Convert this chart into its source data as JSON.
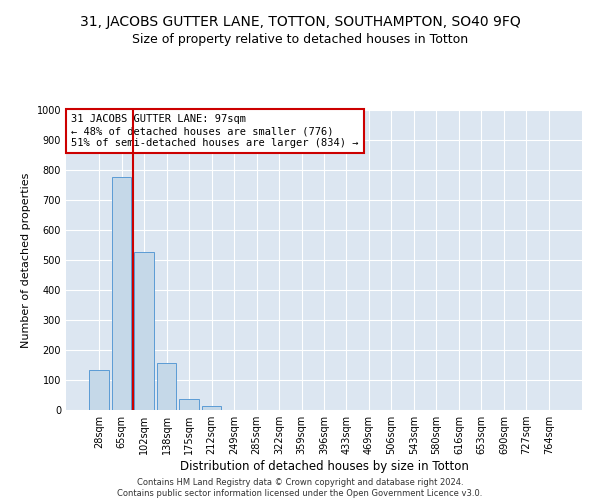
{
  "title": "31, JACOBS GUTTER LANE, TOTTON, SOUTHAMPTON, SO40 9FQ",
  "subtitle": "Size of property relative to detached houses in Totton",
  "xlabel": "Distribution of detached houses by size in Totton",
  "ylabel": "Number of detached properties",
  "bin_labels": [
    "28sqm",
    "65sqm",
    "102sqm",
    "138sqm",
    "175sqm",
    "212sqm",
    "249sqm",
    "285sqm",
    "322sqm",
    "359sqm",
    "396sqm",
    "433sqm",
    "469sqm",
    "506sqm",
    "543sqm",
    "580sqm",
    "616sqm",
    "653sqm",
    "690sqm",
    "727sqm",
    "764sqm"
  ],
  "bar_values": [
    133,
    778,
    527,
    158,
    37,
    12,
    0,
    0,
    0,
    0,
    0,
    0,
    0,
    0,
    0,
    0,
    0,
    0,
    0,
    0,
    0
  ],
  "bar_color": "#c5d8e8",
  "bar_edge_color": "#5b9bd5",
  "vline_color": "#cc0000",
  "annotation_line1": "31 JACOBS GUTTER LANE: 97sqm",
  "annotation_line2": "← 48% of detached houses are smaller (776)",
  "annotation_line3": "51% of semi-detached houses are larger (834) →",
  "annotation_box_color": "#ffffff",
  "annotation_box_edge": "#cc0000",
  "ylim": [
    0,
    1000
  ],
  "yticks": [
    0,
    100,
    200,
    300,
    400,
    500,
    600,
    700,
    800,
    900,
    1000
  ],
  "plot_bg_color": "#dce6f1",
  "footer": "Contains HM Land Registry data © Crown copyright and database right 2024.\nContains public sector information licensed under the Open Government Licence v3.0.",
  "title_fontsize": 10,
  "subtitle_fontsize": 9,
  "xlabel_fontsize": 8.5,
  "ylabel_fontsize": 8,
  "annotation_fontsize": 7.5,
  "tick_fontsize": 7,
  "footer_fontsize": 6
}
